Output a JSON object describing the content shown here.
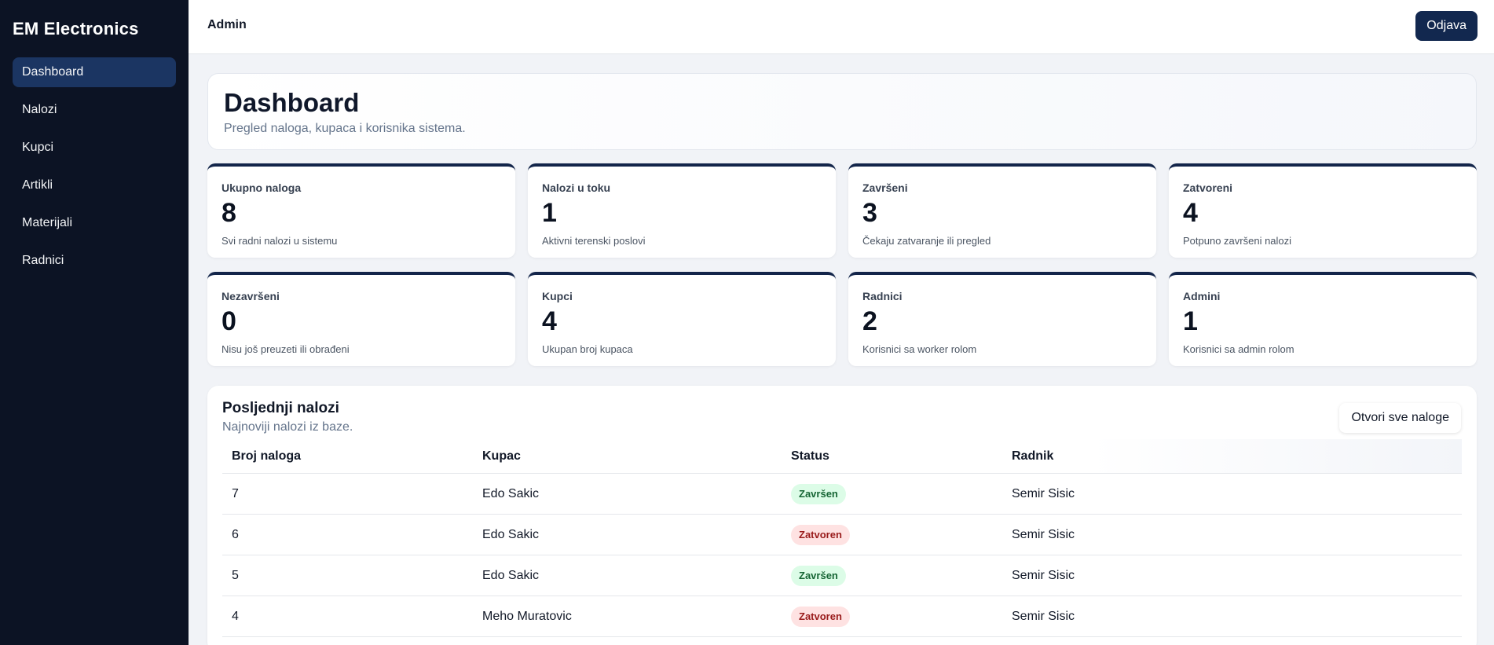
{
  "sidebar": {
    "brand": "EM Electronics",
    "items": [
      {
        "label": "Dashboard",
        "active": true
      },
      {
        "label": "Nalozi"
      },
      {
        "label": "Kupci"
      },
      {
        "label": "Artikli"
      },
      {
        "label": "Materijali"
      },
      {
        "label": "Radnici"
      }
    ]
  },
  "header": {
    "title": "Admin",
    "logout_label": "Odjava"
  },
  "hero": {
    "title": "Dashboard",
    "subtitle": "Pregled naloga, kupaca i korisnika sistema."
  },
  "stats": [
    {
      "label": "Ukupno naloga",
      "value": "8",
      "desc": "Svi radni nalozi u sistemu"
    },
    {
      "label": "Nalozi u toku",
      "value": "1",
      "desc": "Aktivni terenski poslovi"
    },
    {
      "label": "Završeni",
      "value": "3",
      "desc": "Čekaju zatvaranje ili pregled"
    },
    {
      "label": "Zatvoreni",
      "value": "4",
      "desc": "Potpuno završeni nalozi"
    },
    {
      "label": "Nezavršeni",
      "value": "0",
      "desc": "Nisu još preuzeti ili obrađeni"
    },
    {
      "label": "Kupci",
      "value": "4",
      "desc": "Ukupan broj kupaca"
    },
    {
      "label": "Radnici",
      "value": "2",
      "desc": "Korisnici sa worker rolom"
    },
    {
      "label": "Admini",
      "value": "1",
      "desc": "Korisnici sa admin rolom"
    }
  ],
  "orders": {
    "title": "Posljednji nalozi",
    "subtitle": "Najnoviji nalozi iz baze.",
    "open_all_label": "Otvori sve naloge",
    "columns": [
      "Broj naloga",
      "Kupac",
      "Status",
      "Radnik"
    ],
    "rows": [
      {
        "number": "7",
        "customer": "Edo Sakic",
        "status": "Završen",
        "worker": "Semir Sisic"
      },
      {
        "number": "6",
        "customer": "Edo Sakic",
        "status": "Zatvoren",
        "worker": "Semir Sisic"
      },
      {
        "number": "5",
        "customer": "Edo Sakic",
        "status": "Završen",
        "worker": "Semir Sisic"
      },
      {
        "number": "4",
        "customer": "Meho Muratovic",
        "status": "Zatvoren",
        "worker": "Semir Sisic"
      }
    ]
  },
  "colors": {
    "sidebar_bg": "#0c1324",
    "active_nav": "#1b3562",
    "primary_button": "#12284f",
    "status_done": "#166534",
    "status_closed": "#991b1b"
  }
}
